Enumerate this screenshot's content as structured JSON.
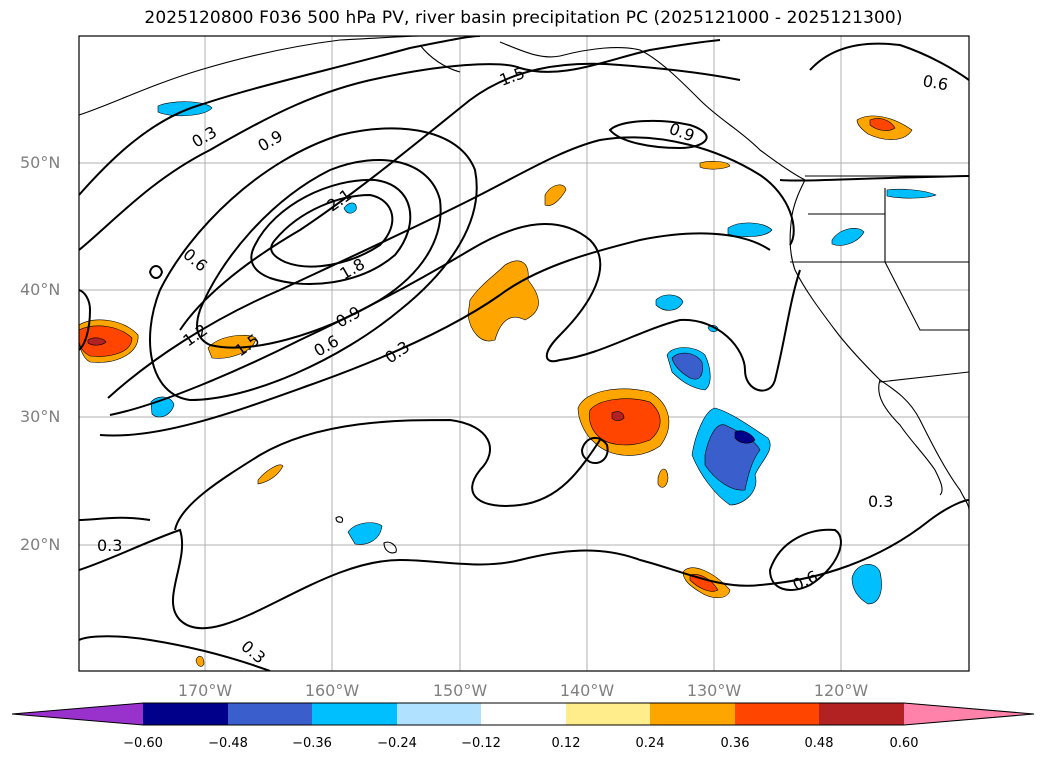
{
  "title": "2025120800 F036 500 hPa PV, river basin precipitation PC (2025121000 - 2025121300)",
  "latitude_labels": [
    "50°N",
    "40°N",
    "30°N",
    "20°N"
  ],
  "longitude_labels": [
    "170°W",
    "160°W",
    "150°W",
    "140°W",
    "130°W",
    "120°W"
  ],
  "contour_labels": [
    "0.3",
    "0.9",
    "1.5",
    "0.6",
    "0.9",
    "2.1",
    "1.8",
    "0.6",
    "0.9",
    "1.2",
    "1.5",
    "0.6",
    "0.3",
    "0.3",
    "0.3",
    "0.6",
    "0.3"
  ],
  "colorbar": {
    "ticks": [
      "−0.60",
      "−0.48",
      "−0.36",
      "−0.24",
      "−0.12",
      "0.12",
      "0.24",
      "0.36",
      "0.48",
      "0.60"
    ],
    "colors": [
      "#9932cc",
      "#00008b",
      "#3a5fcd",
      "#00bfff",
      "#b0e2ff",
      "#ffffff",
      "#ffec8b",
      "#ffa500",
      "#ff4500",
      "#b22222",
      "#ff82ab"
    ]
  },
  "colors": {
    "neg_low": "#00bfff",
    "neg_mid": "#3a5fcd",
    "neg_high": "#00008b",
    "pos_low": "#ffa500",
    "pos_mid": "#ff4500",
    "pos_high": "#b22222",
    "grid": "#b0b0b0",
    "contour": "#000000"
  }
}
